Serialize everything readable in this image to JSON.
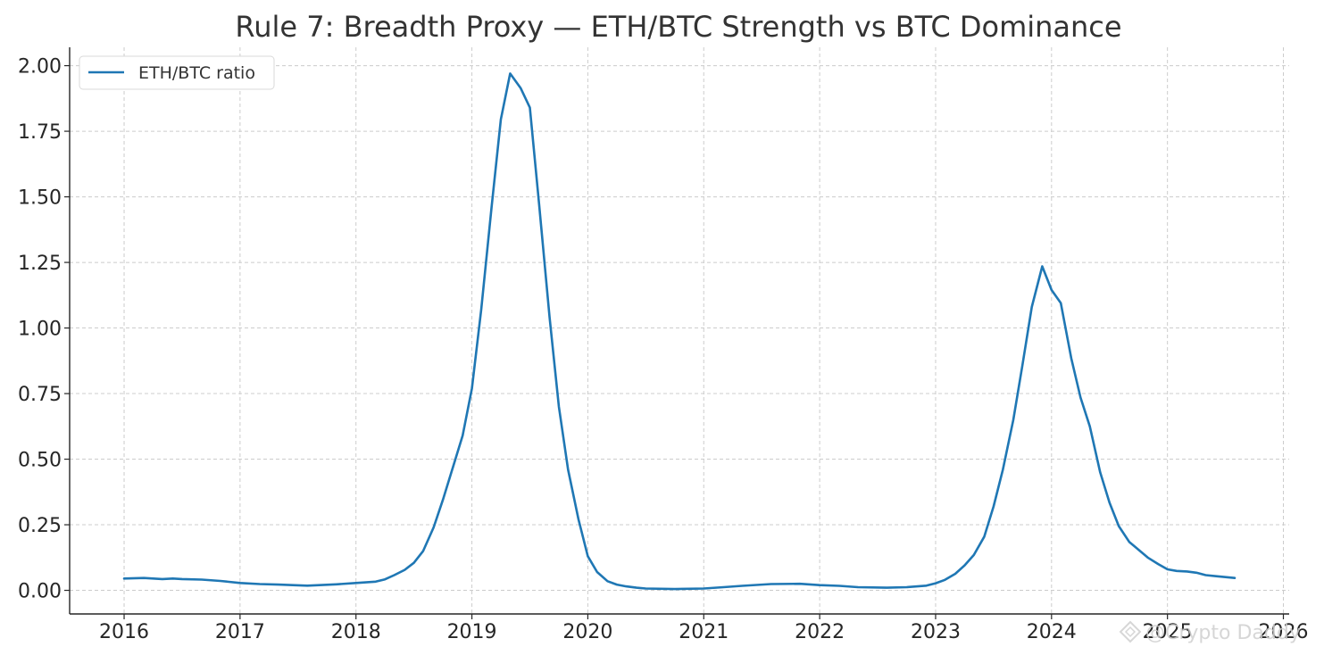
{
  "chart_data": {
    "type": "line",
    "title": "Rule 7: Breadth Proxy — ETH/BTC Strength vs BTC Dominance",
    "xlabel": "",
    "ylabel": "",
    "xlim": [
      2015.53,
      2026.05
    ],
    "ylim": [
      -0.09,
      2.07
    ],
    "x_ticks": [
      "2016",
      "2017",
      "2018",
      "2019",
      "2020",
      "2021",
      "2022",
      "2023",
      "2024",
      "2025",
      "2026"
    ],
    "y_ticks": [
      "0.00",
      "0.25",
      "0.50",
      "0.75",
      "1.00",
      "1.25",
      "1.50",
      "1.75",
      "2.00"
    ],
    "grid": true,
    "legend_position": "top-left",
    "series": [
      {
        "name": "ETH/BTC ratio",
        "color": "#1f77b4",
        "x": [
          2016.0,
          2016.17,
          2016.33,
          2016.42,
          2016.5,
          2016.67,
          2016.83,
          2017.0,
          2017.17,
          2017.33,
          2017.58,
          2017.83,
          2018.0,
          2018.17,
          2018.25,
          2018.33,
          2018.42,
          2018.5,
          2018.58,
          2018.67,
          2018.75,
          2018.83,
          2018.92,
          2019.0,
          2019.08,
          2019.17,
          2019.25,
          2019.33,
          2019.42,
          2019.5,
          2019.58,
          2019.67,
          2019.75,
          2019.83,
          2019.92,
          2020.0,
          2020.08,
          2020.17,
          2020.25,
          2020.33,
          2020.42,
          2020.5,
          2020.75,
          2021.0,
          2021.17,
          2021.33,
          2021.58,
          2021.83,
          2022.0,
          2022.17,
          2022.33,
          2022.58,
          2022.75,
          2022.92,
          2023.0,
          2023.08,
          2023.17,
          2023.25,
          2023.33,
          2023.42,
          2023.5,
          2023.58,
          2023.67,
          2023.75,
          2023.83,
          2023.92,
          2024.0,
          2024.08,
          2024.17,
          2024.25,
          2024.33,
          2024.42,
          2024.5,
          2024.58,
          2024.67,
          2024.75,
          2024.83,
          2024.92,
          2025.0,
          2025.08,
          2025.17,
          2025.25,
          2025.33,
          2025.42,
          2025.58
        ],
        "y": [
          0.045,
          0.047,
          0.043,
          0.045,
          0.043,
          0.041,
          0.036,
          0.028,
          0.024,
          0.022,
          0.018,
          0.023,
          0.028,
          0.033,
          0.042,
          0.058,
          0.078,
          0.105,
          0.15,
          0.24,
          0.345,
          0.46,
          0.59,
          0.77,
          1.07,
          1.46,
          1.795,
          1.97,
          1.915,
          1.84,
          1.47,
          1.04,
          0.7,
          0.46,
          0.27,
          0.13,
          0.07,
          0.035,
          0.022,
          0.015,
          0.01,
          0.007,
          0.005,
          0.007,
          0.012,
          0.017,
          0.024,
          0.025,
          0.02,
          0.017,
          0.012,
          0.01,
          0.012,
          0.018,
          0.027,
          0.04,
          0.063,
          0.095,
          0.135,
          0.205,
          0.32,
          0.46,
          0.65,
          0.86,
          1.08,
          1.235,
          1.145,
          1.095,
          0.885,
          0.735,
          0.625,
          0.45,
          0.335,
          0.245,
          0.185,
          0.155,
          0.125,
          0.1,
          0.08,
          0.074,
          0.072,
          0.067,
          0.058,
          0.054,
          0.047
        ]
      }
    ]
  },
  "watermark": {
    "text": "@Crypto Daddy",
    "icon": "diamond-logo-icon"
  }
}
